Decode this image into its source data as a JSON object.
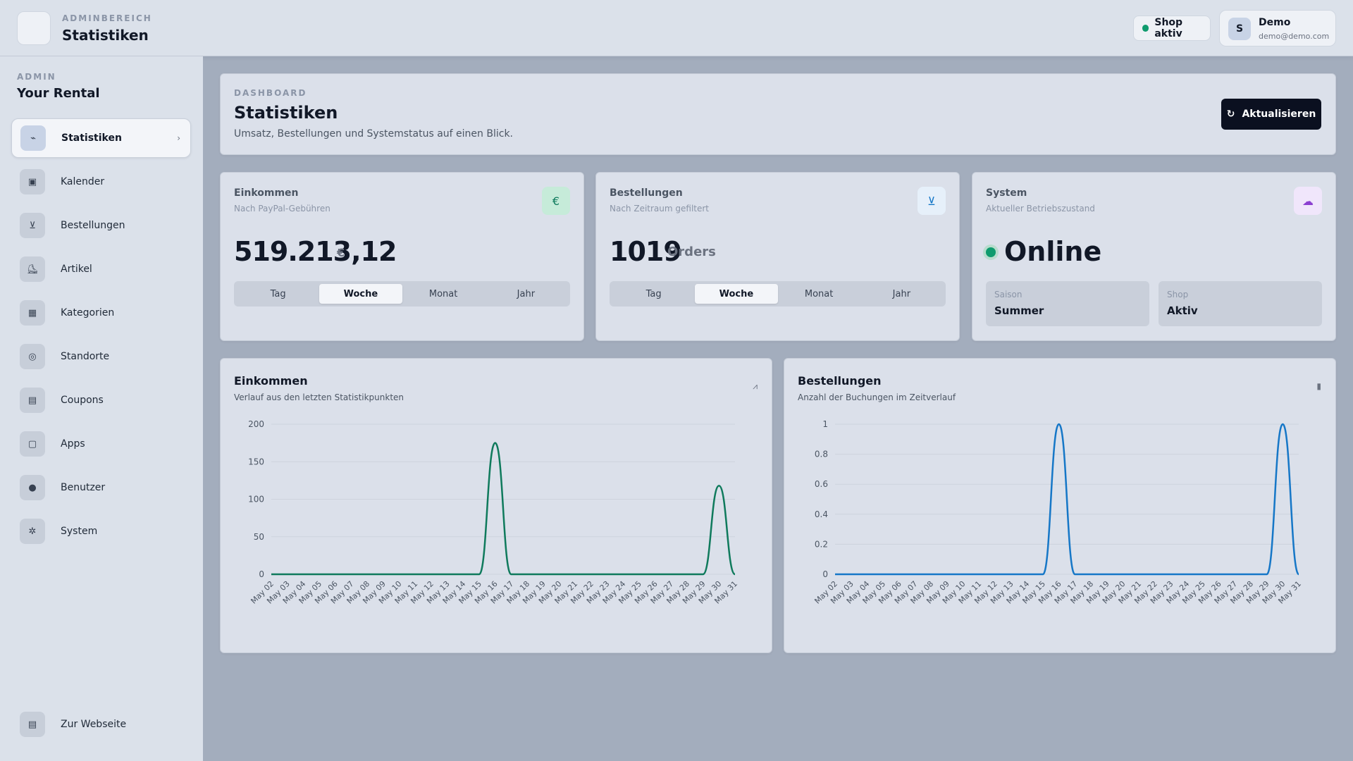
{
  "topbar": {
    "kicker": "ADMINBEREICH",
    "title": "Statistiken",
    "shop_status": "Shop aktiv",
    "user": {
      "initial": "S",
      "name": "Demo",
      "email": "demo@demo.com"
    }
  },
  "sidebar": {
    "kicker": "ADMIN",
    "title": "Your Rental",
    "items": [
      {
        "label": "Statistiken",
        "icon": "trend-icon",
        "glyph": "⌁",
        "active": true
      },
      {
        "label": "Kalender",
        "icon": "calendar-icon",
        "glyph": "▣"
      },
      {
        "label": "Bestellungen",
        "icon": "basket-icon",
        "glyph": "⊻"
      },
      {
        "label": "Artikel",
        "icon": "skate-icon",
        "glyph": "⛸"
      },
      {
        "label": "Kategorien",
        "icon": "grid-icon",
        "glyph": "▦"
      },
      {
        "label": "Standorte",
        "icon": "location-icon",
        "glyph": "◎"
      },
      {
        "label": "Coupons",
        "icon": "ticket-icon",
        "glyph": "▤"
      },
      {
        "label": "Apps",
        "icon": "app-icon",
        "glyph": "▢"
      },
      {
        "label": "Benutzer",
        "icon": "user-icon",
        "glyph": "●"
      },
      {
        "label": "System",
        "icon": "gear-icon",
        "glyph": "✲"
      }
    ],
    "bottom": {
      "label": "Zur Webseite",
      "icon": "store-icon",
      "glyph": "▤"
    }
  },
  "dashboard": {
    "kicker": "DASHBOARD",
    "title": "Statistiken",
    "description": "Umsatz, Bestellungen und Systemstatus auf einen Blick.",
    "refresh_label": "Aktualisieren"
  },
  "stats": {
    "income": {
      "title": "Einkommen",
      "subtitle": "Nach PayPal-Gebühren",
      "value": "519.213,12",
      "unit": "€",
      "icon_glyph": "€",
      "tabs": [
        "Tag",
        "Woche",
        "Monat",
        "Jahr"
      ],
      "selected_tab": "Woche"
    },
    "orders": {
      "title": "Bestellungen",
      "subtitle": "Nach Zeitraum gefiltert",
      "value": "1019",
      "unit": "Orders",
      "icon_glyph": "⊻",
      "tabs": [
        "Tag",
        "Woche",
        "Monat",
        "Jahr"
      ],
      "selected_tab": "Woche"
    },
    "system": {
      "title": "System",
      "subtitle": "Aktueller Betriebszustand",
      "status": "Online",
      "icon_glyph": "☁",
      "season_label": "Saison",
      "season_value": "Summer",
      "shop_label": "Shop",
      "shop_value": "Aktiv"
    }
  },
  "charts": {
    "income": {
      "title": "Einkommen",
      "subtitle": "Verlauf aus den letzten Statistikpunkten",
      "icon_glyph": "⩘"
    },
    "orders": {
      "title": "Bestellungen",
      "subtitle": "Anzahl der Buchungen im Zeitverlauf",
      "icon_glyph": "▮"
    }
  },
  "colors": {
    "accent_green": "#0f7a5c",
    "accent_blue": "#1677c7",
    "status_green": "#0f9b6e"
  },
  "chart_data": [
    {
      "type": "line",
      "title": "Einkommen",
      "x": [
        "May 02",
        "May 03",
        "May 04",
        "May 05",
        "May 06",
        "May 07",
        "May 08",
        "May 09",
        "May 10",
        "May 11",
        "May 12",
        "May 13",
        "May 14",
        "May 15",
        "May 16",
        "May 17",
        "May 18",
        "May 19",
        "May 20",
        "May 21",
        "May 22",
        "May 23",
        "May 24",
        "May 25",
        "May 26",
        "May 27",
        "May 28",
        "May 29",
        "May 30",
        "May 31"
      ],
      "series": [
        {
          "values": [
            0,
            0,
            0,
            0,
            0,
            0,
            0,
            0,
            0,
            0,
            0,
            0,
            0,
            0,
            175,
            0,
            0,
            0,
            0,
            0,
            0,
            0,
            0,
            0,
            0,
            0,
            0,
            0,
            118,
            0
          ]
        }
      ],
      "yticks": [
        0,
        50,
        100,
        150,
        200
      ],
      "ylim": [
        0,
        200
      ],
      "color": "#0f7a5c"
    },
    {
      "type": "line",
      "title": "Bestellungen",
      "x": [
        "May 02",
        "May 03",
        "May 04",
        "May 05",
        "May 06",
        "May 07",
        "May 08",
        "May 09",
        "May 10",
        "May 11",
        "May 12",
        "May 13",
        "May 14",
        "May 15",
        "May 16",
        "May 17",
        "May 18",
        "May 19",
        "May 20",
        "May 21",
        "May 22",
        "May 23",
        "May 24",
        "May 25",
        "May 26",
        "May 27",
        "May 28",
        "May 29",
        "May 30",
        "May 31"
      ],
      "series": [
        {
          "values": [
            0,
            0,
            0,
            0,
            0,
            0,
            0,
            0,
            0,
            0,
            0,
            0,
            0,
            0,
            1,
            0,
            0,
            0,
            0,
            0,
            0,
            0,
            0,
            0,
            0,
            0,
            0,
            0,
            1,
            0
          ]
        }
      ],
      "yticks": [
        0,
        0.2,
        0.4,
        0.6,
        0.8,
        1
      ],
      "ylim": [
        0,
        1
      ],
      "color": "#1677c7"
    }
  ]
}
